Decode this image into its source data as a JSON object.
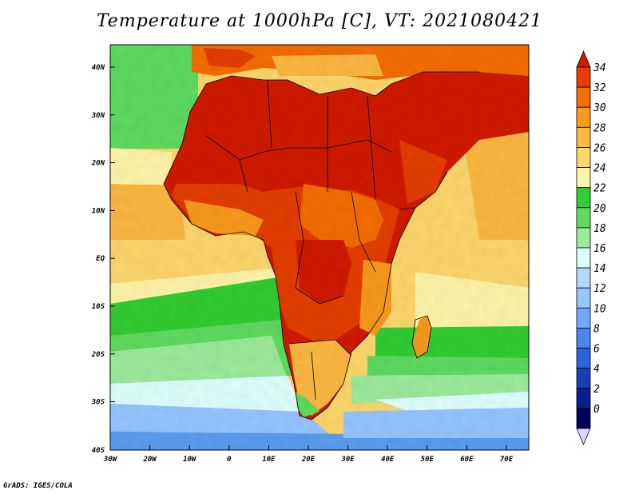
{
  "title": "Temperature at 1000hPa [C], VT: 2021080421",
  "credit": "GrADS: IGES/COLA",
  "lat_labels": [
    "40N",
    "30N",
    "20N",
    "10N",
    "EQ",
    "10S",
    "20S",
    "30S",
    "40S"
  ],
  "lon_labels": [
    "30W",
    "20W",
    "10W",
    "0",
    "10E",
    "20E",
    "30E",
    "40E",
    "50E",
    "60E",
    "70E"
  ],
  "colorbar": {
    "levels": [
      "34",
      "32",
      "30",
      "28",
      "26",
      "24",
      "22",
      "20",
      "18",
      "16",
      "14",
      "12",
      "10",
      "8",
      "6",
      "4",
      "2",
      "0"
    ],
    "colors": [
      "#d11a00",
      "#e43e00",
      "#f46d00",
      "#f99a1c",
      "#fcb842",
      "#fdd76c",
      "#fff5a8",
      "#32cd32",
      "#5fdc5f",
      "#9ceb9c",
      "#e0ffff",
      "#b4d7ff",
      "#96c5ff",
      "#6fa9ff",
      "#4a86f0",
      "#2d63d8",
      "#1a3fb2",
      "#0c1f8a",
      "#000060",
      "#d8d8ff"
    ]
  },
  "map_colors": {
    "ocean_deep_south": "#5a9ef0",
    "ocean_south": "#96c5ff",
    "ocean_cool": "#e0ffff",
    "ocean_mild": "#9ceb9c",
    "ocean_green": "#32cd32",
    "ocean_yellow": "#fff5a8",
    "ocean_tan": "#fdd76c",
    "ocean_orange": "#fcb842",
    "land_hot": "#d11a00",
    "land_warm": "#e43e00",
    "land_orange": "#f46d00"
  }
}
